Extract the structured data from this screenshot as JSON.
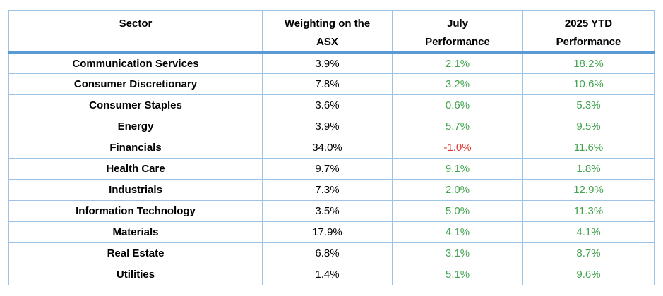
{
  "colors": {
    "border_light": "#9dc3e6",
    "header_rule": "#5b9bd5",
    "positive_green": "#44a34f",
    "negative_red": "#e33b32",
    "text": "#000000",
    "background": "#ffffff"
  },
  "chart_data": {
    "type": "table",
    "title": "",
    "columns": [
      "Sector",
      "Weighting on the ASX",
      "July Performance",
      "2025 YTD Performance"
    ],
    "header_lines": [
      {
        "line1": "Sector",
        "line2": ""
      },
      {
        "line1": "Weighting on the",
        "line2": "ASX"
      },
      {
        "line1": "July",
        "line2": "Performance"
      },
      {
        "line1": "2025 YTD",
        "line2": "Performance"
      }
    ],
    "rows": [
      {
        "sector": "Communication Services",
        "weighting": "3.9%",
        "july": "2.1%",
        "ytd": "18.2%"
      },
      {
        "sector": "Consumer Discretionary",
        "weighting": "7.8%",
        "july": "3.2%",
        "ytd": "10.6%"
      },
      {
        "sector": "Consumer Staples",
        "weighting": "3.6%",
        "july": "0.6%",
        "ytd": "5.3%"
      },
      {
        "sector": "Energy",
        "weighting": "3.9%",
        "july": "5.7%",
        "ytd": "9.5%"
      },
      {
        "sector": "Financials",
        "weighting": "34.0%",
        "july": "-1.0%",
        "ytd": "11.6%"
      },
      {
        "sector": "Health Care",
        "weighting": "9.7%",
        "july": "9.1%",
        "ytd": "1.8%"
      },
      {
        "sector": "Industrials",
        "weighting": "7.3%",
        "july": "2.0%",
        "ytd": "12.9%"
      },
      {
        "sector": "Information Technology",
        "weighting": "3.5%",
        "july": "5.0%",
        "ytd": "11.3%"
      },
      {
        "sector": "Materials",
        "weighting": "17.9%",
        "july": "4.1%",
        "ytd": "4.1%"
      },
      {
        "sector": "Real Estate",
        "weighting": "6.8%",
        "july": "3.1%",
        "ytd": "8.7%"
      },
      {
        "sector": "Utilities",
        "weighting": "1.4%",
        "july": "5.1%",
        "ytd": "9.6%"
      }
    ]
  }
}
